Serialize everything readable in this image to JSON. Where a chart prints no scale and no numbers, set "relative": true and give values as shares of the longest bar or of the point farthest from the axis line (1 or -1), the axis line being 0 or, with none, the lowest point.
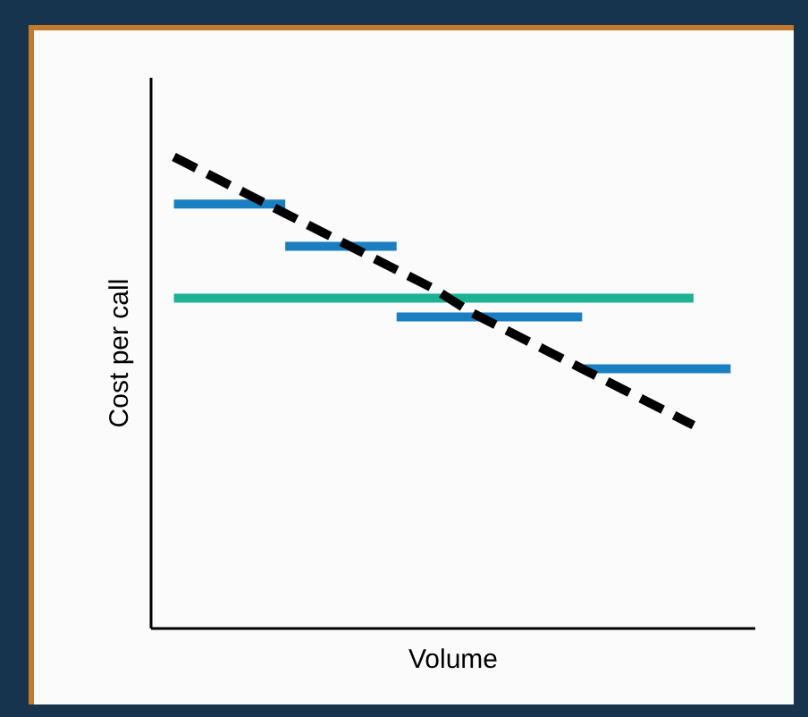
{
  "chart_data": {
    "type": "line",
    "relative": true,
    "xlabel": "Volume",
    "ylabel": "Cost per call",
    "grid": false,
    "categories": [
      null,
      null,
      null,
      null,
      null,
      null,
      null,
      null,
      null,
      null,
      null,
      null,
      null,
      null,
      null,
      null
    ],
    "series": [
      {
        "color": "#1a7fc1",
        "values": [
          0.9,
          0.9,
          0.9,
          0.9,
          null,
          null,
          null,
          null,
          null,
          null,
          null,
          null,
          null,
          null,
          null,
          null
        ]
      },
      {
        "color": "#1a7fc1",
        "values": [
          null,
          null,
          null,
          0.81,
          0.81,
          0.81,
          0.81,
          null,
          null,
          null,
          null,
          null,
          null,
          null,
          null,
          null
        ]
      },
      {
        "color": "#1a7fc1",
        "values": [
          null,
          null,
          null,
          null,
          null,
          null,
          0.66,
          0.66,
          0.66,
          0.66,
          0.66,
          0.66,
          null,
          null,
          null,
          null
        ]
      },
      {
        "color": "#1a7fc1",
        "values": [
          null,
          null,
          null,
          null,
          null,
          null,
          null,
          null,
          null,
          null,
          null,
          0.55,
          0.55,
          0.55,
          0.55,
          0.55
        ]
      },
      {
        "color": "#1bb394",
        "values": [
          0.7,
          0.7,
          0.7,
          0.7,
          0.7,
          0.7,
          0.7,
          0.7,
          0.7,
          0.7,
          0.7,
          0.7,
          0.7,
          0.7,
          0.7,
          null
        ]
      },
      {
        "color": "#000000",
        "line_style": "dashed",
        "values": [
          1,
          0.96,
          0.92,
          0.88,
          0.84,
          0.8,
          0.76,
          0.72,
          0.67,
          0.63,
          0.59,
          0.55,
          0.51,
          0.47,
          0.43,
          null
        ]
      }
    ]
  }
}
